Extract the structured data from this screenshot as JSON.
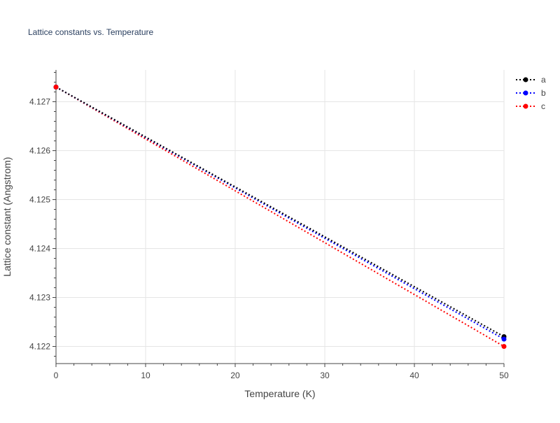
{
  "chart_data": {
    "type": "line",
    "title": "Lattice constants vs. Temperature",
    "xlabel": "Temperature (K)",
    "ylabel": "Lattice constant (Angstrom)",
    "xlim": [
      0,
      50
    ],
    "ylim": [
      4.12165,
      4.12765
    ],
    "x_ticks": [
      0,
      10,
      20,
      30,
      40,
      50
    ],
    "x_tick_labels": [
      "0",
      "10",
      "20",
      "30",
      "40",
      "50"
    ],
    "y_ticks": [
      4.122,
      4.123,
      4.124,
      4.125,
      4.126,
      4.127
    ],
    "y_tick_labels": [
      "4.122",
      "4.123",
      "4.124",
      "4.125",
      "4.126",
      "4.127"
    ],
    "x_minor_step": 2,
    "y_minor_step": 0.0002,
    "grid": true,
    "legend_position": "top-right",
    "line_style": "dotted",
    "marker": "circle",
    "x": [
      0,
      50
    ],
    "series": [
      {
        "name": "a",
        "color": "#000000",
        "values": [
          4.1273,
          4.1222
        ]
      },
      {
        "name": "b",
        "color": "#0000ff",
        "values": [
          4.1273,
          4.12215
        ]
      },
      {
        "name": "c",
        "color": "#ff0000",
        "values": [
          4.1273,
          4.122
        ]
      }
    ],
    "colors": {
      "grid": "#e5e5e5",
      "axis": "#444444",
      "text": "#444444",
      "title": "#2a3f5f"
    }
  }
}
